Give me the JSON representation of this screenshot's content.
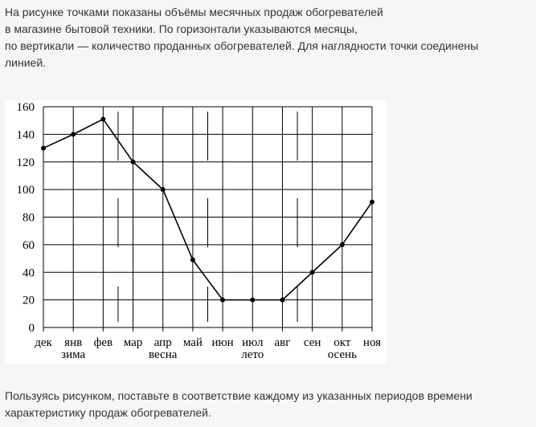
{
  "intro": {
    "lines": [
      "На рисунке точками показаны объёмы месячных продаж обогревателей",
      "в магазине бытовой техники. По горизонтали указываются месяцы,",
      "по вертикали — количество проданных обогревателей. Для наглядности точки соединены",
      "линией."
    ]
  },
  "outro": {
    "lines": [
      "Пользуясь рисунком, поставьте в соответствие каждому из указанных периодов времени",
      "характеристику продаж обогревателей."
    ]
  },
  "chart_data": {
    "type": "line",
    "title": "",
    "xlabel": "",
    "ylabel": "",
    "categories": [
      "дек",
      "янв",
      "фев",
      "мар",
      "апр",
      "май",
      "июн",
      "июл",
      "авг",
      "сен",
      "окт",
      "ноя"
    ],
    "series": [
      {
        "values": [
          130,
          140,
          151,
          120,
          100,
          49,
          20,
          20,
          20,
          40,
          60,
          91
        ]
      }
    ],
    "ylim": [
      0,
      160
    ],
    "yticks": [
      0,
      20,
      40,
      60,
      80,
      100,
      120,
      140,
      160
    ],
    "grid": true,
    "season_labels": [
      {
        "label": "зима",
        "months": [
          "дек",
          "янв",
          "фев"
        ]
      },
      {
        "label": "весна",
        "months": [
          "мар",
          "апр",
          "май"
        ]
      },
      {
        "label": "лето",
        "months": [
          "июн",
          "июл",
          "авг"
        ]
      },
      {
        "label": "осень",
        "months": [
          "сен",
          "окт",
          "ноя"
        ]
      }
    ]
  }
}
